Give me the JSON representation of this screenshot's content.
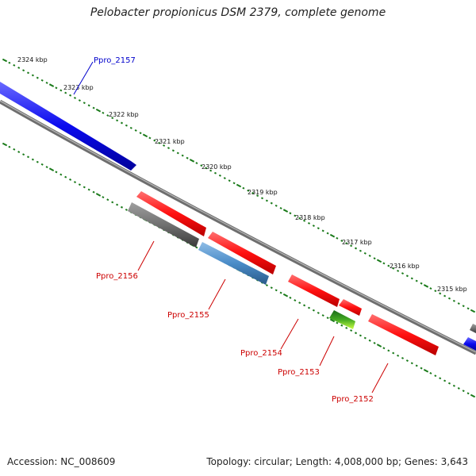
{
  "title": "Pelobacter propionicus DSM 2379, complete genome",
  "accession": "Accession: NC_008609",
  "topology": "Topology: circular; Length: 4,008,000 bp; Genes: 3,643",
  "scale_labels": [
    "2324 kbp",
    "2323 kbp",
    "2322 kbp",
    "2321 kbp",
    "2320 kbp",
    "2319 kbp",
    "2318 kbp",
    "2317 kbp",
    "2316 kbp",
    "2315 kbp"
  ],
  "genes": [
    {
      "label": "Ppro_2157",
      "color": "#0000cc",
      "strand": "forward"
    },
    {
      "label": "Ppro_2156",
      "color": "#cc0000",
      "strand": "reverse"
    },
    {
      "label": "Ppro_2155",
      "color": "#cc0000",
      "strand": "reverse"
    },
    {
      "label": "Ppro_2154",
      "color": "#cc0000",
      "strand": "reverse"
    },
    {
      "label": "Ppro_2153",
      "color": "#cc0000",
      "strand": "reverse"
    },
    {
      "label": "Ppro_2152",
      "color": "#cc0000",
      "strand": "reverse"
    }
  ],
  "colors": {
    "backbone": "#808080",
    "forward_gene": "#1a1aff",
    "red_gene": "#ff1a1a",
    "gray_gene": "#707070",
    "steel_gene": "#4a8cc8",
    "green_gene": "#66cc22",
    "tick": "#1a7a1a"
  }
}
